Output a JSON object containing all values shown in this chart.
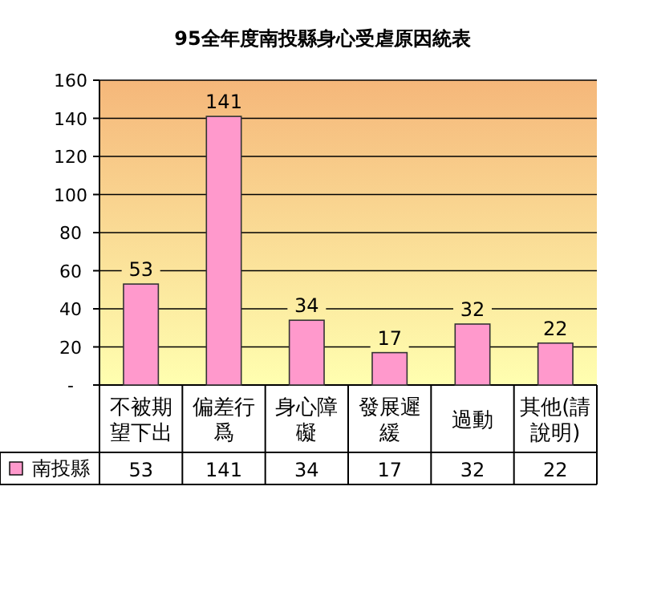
{
  "chart_data": {
    "type": "bar",
    "title": "95全年度南投縣身心受虐原因統表",
    "categories": [
      "不被期望下出",
      "偏差行爲",
      "身心障礙",
      "發展遲緩",
      "過動",
      "其他(請說明)"
    ],
    "series": [
      {
        "name": "南投縣",
        "color": "#ff99cc",
        "values": [
          53,
          141,
          34,
          17,
          32,
          22
        ],
        "value_labels": [
          "53",
          "141",
          "34",
          "17",
          "32",
          "22"
        ]
      }
    ],
    "ylim": [
      0,
      160
    ],
    "yticks": [
      {
        "value": 0,
        "label": "-"
      },
      20,
      40,
      60,
      80,
      100,
      120,
      140,
      160
    ],
    "annotations": [
      {
        "text": "53",
        "x": "不被期望下出"
      },
      {
        "text": "141",
        "x": "偏差行爲"
      },
      {
        "text": "34",
        "x": "身心障礙"
      },
      {
        "text": "17",
        "x": "發展遲緩"
      },
      {
        "text": "32",
        "x": "過動"
      },
      {
        "text": "22",
        "x": "其他(請說明)"
      }
    ],
    "grid": "y",
    "legend": "bottom left"
  }
}
